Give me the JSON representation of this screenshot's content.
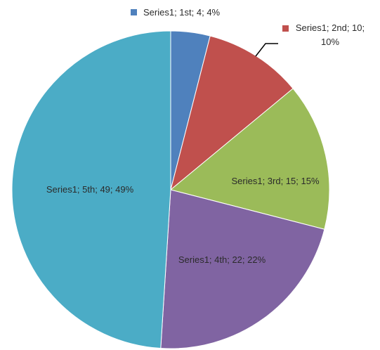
{
  "chart_data": {
    "type": "pie",
    "values": [
      4,
      10,
      15,
      22,
      49
    ],
    "value_labels": [
      "Series1; 1st; 4; 4%",
      "Series1; 2nd; 10; 10%",
      "Series1; 3rd; 15; 15%",
      "Series1; 4th; 22; 22%",
      "Series1; 5th; 49; 49%"
    ],
    "colors": [
      "#4f81bd",
      "#c0504d",
      "#9bbb59",
      "#8064a2",
      "#4bacc6"
    ]
  }
}
